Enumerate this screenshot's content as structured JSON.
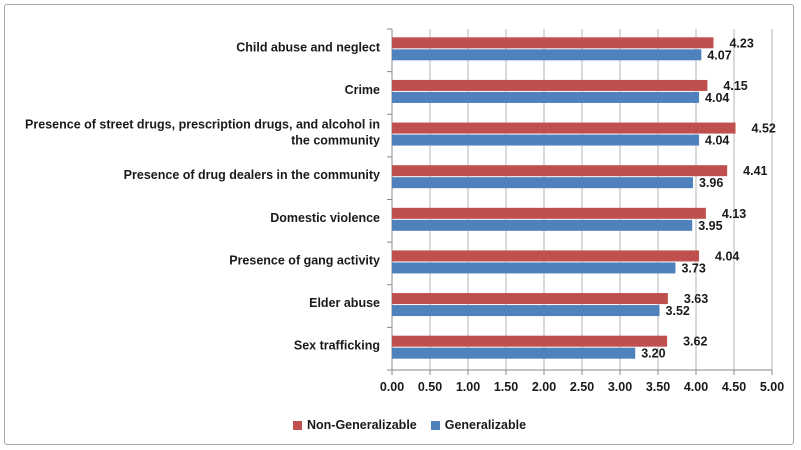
{
  "chart_data": {
    "type": "bar",
    "orientation": "horizontal",
    "categories": [
      "Child abuse and neglect",
      "Crime",
      "Presence of street drugs, prescription drugs, and alcohol in the community",
      "Presence of drug dealers in the community",
      "Domestic violence",
      "Presence of gang activity",
      "Elder abuse",
      "Sex trafficking"
    ],
    "category_label_lines": [
      [
        "Child abuse and neglect"
      ],
      [
        "Crime"
      ],
      [
        "Presence of street drugs, prescription drugs, and alcohol in",
        "the community"
      ],
      [
        "Presence of drug dealers in the community"
      ],
      [
        "Domestic violence"
      ],
      [
        "Presence of gang activity"
      ],
      [
        "Elder abuse"
      ],
      [
        "Sex trafficking"
      ]
    ],
    "series": [
      {
        "name": "Non-Generalizable",
        "color": "#c0504d",
        "values": [
          4.23,
          4.15,
          4.52,
          4.41,
          4.13,
          4.04,
          3.63,
          3.62
        ],
        "labels": [
          "4.23",
          "4.15",
          "4.52",
          "4.41",
          "4.13",
          "4.04",
          "3.63",
          "3.62"
        ]
      },
      {
        "name": "Generalizable",
        "color": "#4f81bd",
        "values": [
          4.07,
          4.04,
          4.04,
          3.96,
          3.95,
          3.73,
          3.52,
          3.2
        ],
        "labels": [
          "4.07",
          "4.04",
          "4.04",
          "3.96",
          "3.95",
          "3.73",
          "3.52",
          "3.20"
        ]
      }
    ],
    "xlim": [
      0,
      5
    ],
    "xticks": [
      "0.00",
      "0.50",
      "1.00",
      "1.50",
      "2.00",
      "2.50",
      "3.00",
      "3.50",
      "4.00",
      "4.50",
      "5.00"
    ],
    "xtick_values": [
      0,
      0.5,
      1,
      1.5,
      2,
      2.5,
      3,
      3.5,
      4,
      4.5,
      5
    ],
    "vertical_gridlines": true,
    "legend_position": "bottom"
  }
}
